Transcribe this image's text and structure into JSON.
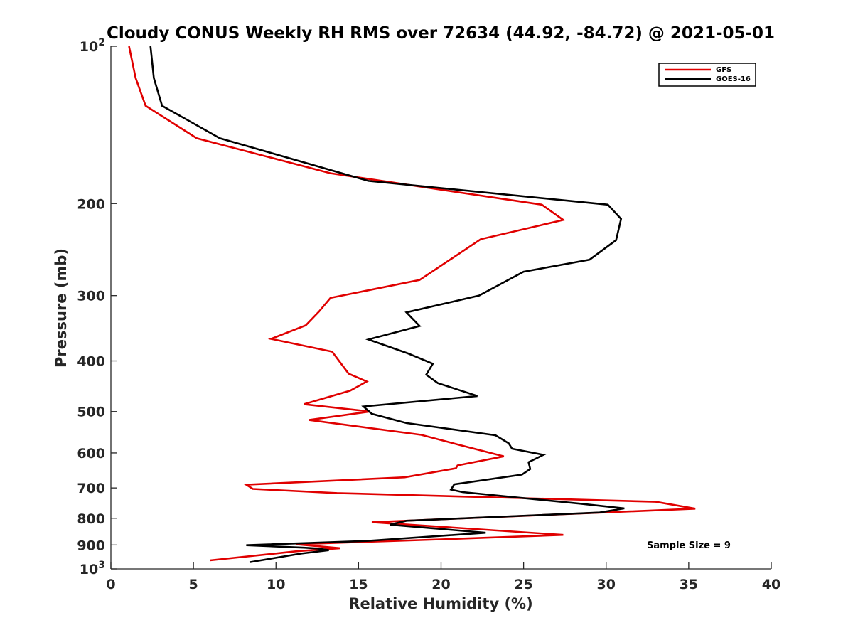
{
  "chart_data": {
    "type": "line",
    "title": "Cloudy CONUS Weekly RH RMS over 72634 (44.92, -84.72) @ 2021-05-01",
    "xlabel": "Relative Humidity (%)",
    "ylabel": "Pressure (mb)",
    "xlim": [
      0,
      40
    ],
    "ylim": [
      100,
      1000
    ],
    "y_scale": "log",
    "y_reversed": true,
    "x_ticks": [
      "0",
      "5",
      "10",
      "15",
      "20",
      "25",
      "30",
      "35",
      "40"
    ],
    "y_ticks": [
      {
        "value": 100,
        "base": "10",
        "exp": "2"
      },
      {
        "value": 200,
        "base": "200",
        "exp": ""
      },
      {
        "value": 300,
        "base": "300",
        "exp": ""
      },
      {
        "value": 400,
        "base": "400",
        "exp": ""
      },
      {
        "value": 500,
        "base": "500",
        "exp": ""
      },
      {
        "value": 600,
        "base": "600",
        "exp": ""
      },
      {
        "value": 700,
        "base": "700",
        "exp": ""
      },
      {
        "value": 800,
        "base": "800",
        "exp": ""
      },
      {
        "value": 900,
        "base": "900",
        "exp": ""
      },
      {
        "value": 1000,
        "base": "10",
        "exp": "3"
      }
    ],
    "grid": false,
    "legend_position": "top-right",
    "annotation": "Sample Size = 9",
    "series": [
      {
        "name": "GFS",
        "color": "#e00000",
        "points": [
          [
            1.1,
            100
          ],
          [
            1.5,
            115
          ],
          [
            2.1,
            130
          ],
          [
            5.2,
            150
          ],
          [
            13.3,
            175
          ],
          [
            26.1,
            201
          ],
          [
            27.4,
            215
          ],
          [
            22.4,
            234
          ],
          [
            18.7,
            280
          ],
          [
            13.3,
            303
          ],
          [
            12.6,
            322
          ],
          [
            11.8,
            342
          ],
          [
            9.7,
            363
          ],
          [
            13.4,
            384
          ],
          [
            14.4,
            423
          ],
          [
            15.5,
            438
          ],
          [
            14.5,
            456
          ],
          [
            11.7,
            484
          ],
          [
            15.7,
            500
          ],
          [
            12.0,
            519
          ],
          [
            18.8,
            554
          ],
          [
            21.0,
            578
          ],
          [
            22.9,
            599
          ],
          [
            23.8,
            609
          ],
          [
            21.0,
            634
          ],
          [
            20.9,
            642
          ],
          [
            17.8,
            668
          ],
          [
            8.2,
            690
          ],
          [
            8.6,
            703
          ],
          [
            13.7,
            716
          ],
          [
            33.0,
            744
          ],
          [
            35.4,
            767
          ],
          [
            15.8,
            814
          ],
          [
            27.4,
            861
          ],
          [
            20.0,
            878
          ],
          [
            11.2,
            897
          ],
          [
            13.9,
            913
          ],
          [
            11.3,
            925
          ],
          [
            6.0,
            963
          ]
        ]
      },
      {
        "name": "GOES-16",
        "color": "#000000",
        "points": [
          [
            2.4,
            100
          ],
          [
            2.6,
            115
          ],
          [
            3.1,
            130
          ],
          [
            6.6,
            150
          ],
          [
            15.6,
            181
          ],
          [
            30.1,
            201
          ],
          [
            30.9,
            214
          ],
          [
            30.6,
            235
          ],
          [
            29.0,
            256
          ],
          [
            25.0,
            270
          ],
          [
            22.3,
            300
          ],
          [
            17.9,
            323
          ],
          [
            18.7,
            343
          ],
          [
            15.6,
            364
          ],
          [
            18.0,
            387
          ],
          [
            19.5,
            405
          ],
          [
            19.1,
            425
          ],
          [
            19.8,
            441
          ],
          [
            22.2,
            467
          ],
          [
            15.3,
            489
          ],
          [
            15.8,
            505
          ],
          [
            17.9,
            526
          ],
          [
            23.3,
            555
          ],
          [
            24.1,
            575
          ],
          [
            24.3,
            589
          ],
          [
            26.2,
            605
          ],
          [
            25.3,
            625
          ],
          [
            25.4,
            644
          ],
          [
            24.9,
            660
          ],
          [
            20.8,
            689
          ],
          [
            20.6,
            705
          ],
          [
            21.3,
            713
          ],
          [
            28.4,
            750
          ],
          [
            31.1,
            766
          ],
          [
            29.6,
            780
          ],
          [
            17.9,
            809
          ],
          [
            16.9,
            823
          ],
          [
            22.7,
            853
          ],
          [
            15.6,
            884
          ],
          [
            8.2,
            901
          ],
          [
            11.7,
            911
          ],
          [
            12.5,
            914
          ],
          [
            13.2,
            921
          ],
          [
            11.5,
            935
          ],
          [
            8.4,
            971
          ]
        ]
      }
    ]
  }
}
